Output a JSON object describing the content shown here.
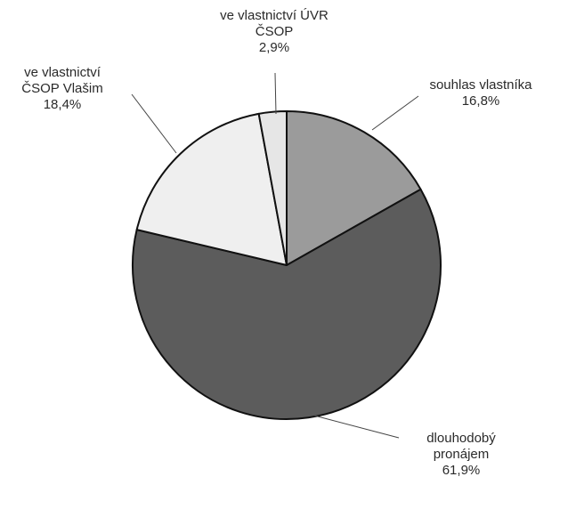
{
  "chart_data": {
    "type": "pie",
    "title": "",
    "slices": [
      {
        "label_lines": [
          "souhlas vlastníka"
        ],
        "value": 16.8,
        "value_label": "16,8%",
        "color": "#9b9b9b"
      },
      {
        "label_lines": [
          "dlouhodobý",
          "pronájem"
        ],
        "value": 61.9,
        "value_label": "61,9%",
        "color": "#5c5c5c"
      },
      {
        "label_lines": [
          "ve vlastnictví",
          "ČSOP Vlašim"
        ],
        "value": 18.4,
        "value_label": "18,4%",
        "color": "#efefef"
      },
      {
        "label_lines": [
          "ve vlastnictví ÚVR",
          "ČSOP"
        ],
        "value": 2.9,
        "value_label": "2,9%",
        "color": "#e6e6e6"
      }
    ],
    "start_angle_deg": 0,
    "direction": "clockwise",
    "legend": "none"
  }
}
